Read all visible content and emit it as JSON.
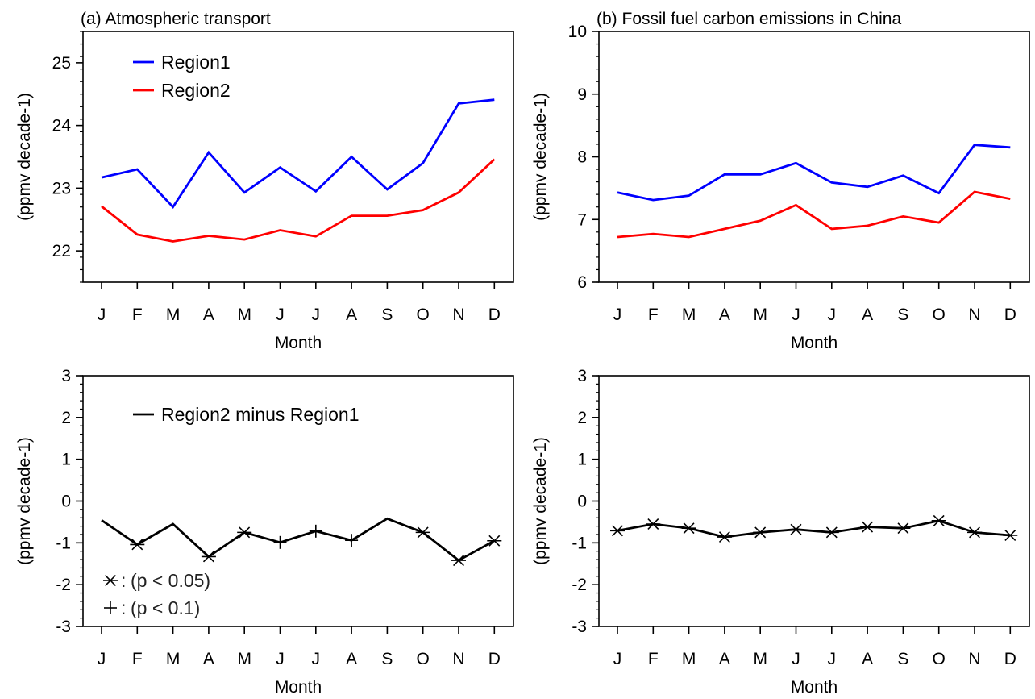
{
  "chart_data": [
    {
      "type": "line",
      "title": "(a) Atmospheric transport",
      "xlabel": "Month",
      "ylabel": "(ppmv decade-1)",
      "ylim": [
        21.5,
        25.5
      ],
      "yticks": [
        22,
        23,
        24,
        25
      ],
      "categories": [
        "J",
        "F",
        "M",
        "A",
        "M",
        "J",
        "J",
        "A",
        "S",
        "O",
        "N",
        "D"
      ],
      "grid": false,
      "legend_position": "top-left",
      "series": [
        {
          "name": "Region1",
          "color": "#0000ff",
          "values": [
            23.17,
            23.3,
            22.7,
            23.57,
            22.93,
            23.33,
            22.95,
            23.5,
            22.98,
            23.4,
            24.35,
            24.41
          ]
        },
        {
          "name": "Region2",
          "color": "#ff0000",
          "values": [
            22.71,
            22.26,
            22.15,
            22.24,
            22.18,
            22.33,
            22.23,
            22.56,
            22.56,
            22.65,
            22.93,
            23.46
          ]
        }
      ]
    },
    {
      "type": "line",
      "title": "(b) Fossil fuel carbon emissions in China",
      "xlabel": "Month",
      "ylabel": "(ppmv decade-1)",
      "ylim": [
        6,
        10
      ],
      "yticks": [
        6,
        7,
        8,
        9,
        10
      ],
      "categories": [
        "J",
        "F",
        "M",
        "A",
        "M",
        "J",
        "J",
        "A",
        "S",
        "O",
        "N",
        "D"
      ],
      "grid": false,
      "series": [
        {
          "name": "",
          "color": "#0000ff",
          "values": [
            7.43,
            7.31,
            7.38,
            7.72,
            7.72,
            7.9,
            7.59,
            7.52,
            7.7,
            7.42,
            8.19,
            8.15
          ]
        },
        {
          "name": "",
          "color": "#ff0000",
          "values": [
            6.72,
            6.77,
            6.72,
            6.85,
            6.98,
            7.23,
            6.85,
            6.9,
            7.05,
            6.95,
            7.44,
            7.33
          ]
        }
      ]
    },
    {
      "type": "line",
      "title": "",
      "xlabel": "Month",
      "ylabel": "(ppmv decade-1)",
      "ylim": [
        -3,
        3
      ],
      "yticks": [
        -3,
        -2,
        -1,
        0,
        1,
        2,
        3
      ],
      "categories": [
        "J",
        "F",
        "M",
        "A",
        "M",
        "J",
        "J",
        "A",
        "S",
        "O",
        "N",
        "D"
      ],
      "grid": false,
      "legend_position": "top-left",
      "series": [
        {
          "name": "Region2 minus Region1",
          "color": "#000000",
          "values": [
            -0.46,
            -1.04,
            -0.55,
            -1.33,
            -0.75,
            -0.99,
            -0.72,
            -0.94,
            -0.42,
            -0.75,
            -1.42,
            -0.95
          ],
          "markers": [
            "none",
            "star",
            "none",
            "star",
            "star",
            "plus",
            "plus",
            "plus",
            "none",
            "star",
            "star",
            "star"
          ]
        }
      ],
      "annotations": [
        "(p < 0.05)",
        "(p < 0.1)"
      ]
    },
    {
      "type": "line",
      "title": "",
      "xlabel": "Month",
      "ylabel": "(ppmv decade-1)",
      "ylim": [
        -3,
        3
      ],
      "yticks": [
        -3,
        -2,
        -1,
        0,
        1,
        2,
        3
      ],
      "categories": [
        "J",
        "F",
        "M",
        "A",
        "M",
        "J",
        "J",
        "A",
        "S",
        "O",
        "N",
        "D"
      ],
      "grid": false,
      "series": [
        {
          "name": "",
          "color": "#000000",
          "values": [
            -0.71,
            -0.55,
            -0.65,
            -0.86,
            -0.75,
            -0.68,
            -0.75,
            -0.62,
            -0.65,
            -0.47,
            -0.75,
            -0.82
          ],
          "markers": [
            "star",
            "star",
            "star",
            "star",
            "star",
            "star",
            "star",
            "star",
            "star",
            "star",
            "star",
            "star"
          ]
        }
      ]
    }
  ]
}
